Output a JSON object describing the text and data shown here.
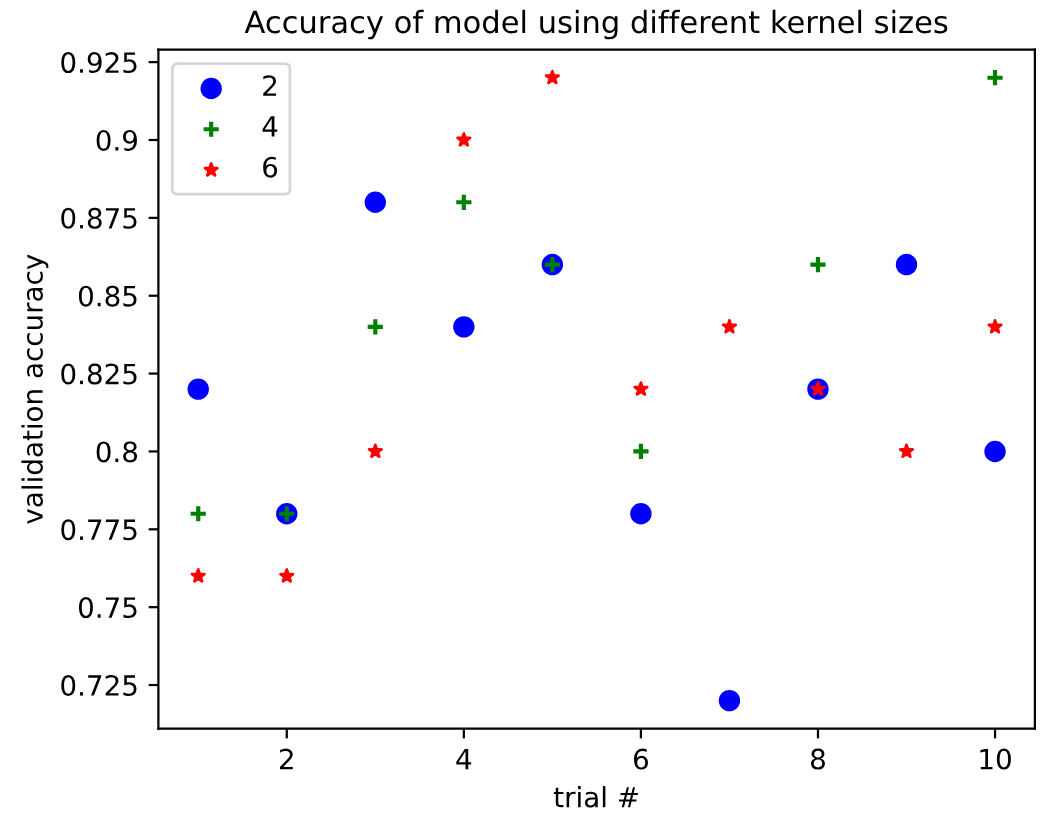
{
  "chart_data": {
    "type": "scatter",
    "title": "Accuracy of model using different kernel sizes",
    "xlabel": "trial #",
    "ylabel": "validation accuracy",
    "x": [
      1,
      2,
      3,
      4,
      5,
      6,
      7,
      8,
      9,
      10
    ],
    "series": [
      {
        "name": "2",
        "color": "#0000ff",
        "marker": "circle",
        "values": [
          0.82,
          0.78,
          0.88,
          0.84,
          0.86,
          0.78,
          0.72,
          0.82,
          0.86,
          0.8
        ]
      },
      {
        "name": "4",
        "color": "#008000",
        "marker": "cross",
        "values": [
          0.78,
          0.78,
          0.84,
          0.88,
          0.86,
          0.8,
          null,
          0.86,
          null,
          0.92
        ]
      },
      {
        "name": "6",
        "color": "#ff0000",
        "marker": "star",
        "values": [
          0.76,
          0.76,
          0.8,
          0.9,
          0.92,
          0.82,
          0.84,
          0.82,
          0.8,
          0.84
        ]
      }
    ],
    "xlim": [
      0.55,
      10.45
    ],
    "xticks": [
      2,
      4,
      6,
      8,
      10
    ],
    "ylim": [
      0.711,
      0.929
    ],
    "yticks": [
      0.725,
      0.75,
      0.775,
      0.8,
      0.825,
      0.85,
      0.875,
      0.9,
      0.925
    ],
    "legend": "top left",
    "grid": false
  }
}
